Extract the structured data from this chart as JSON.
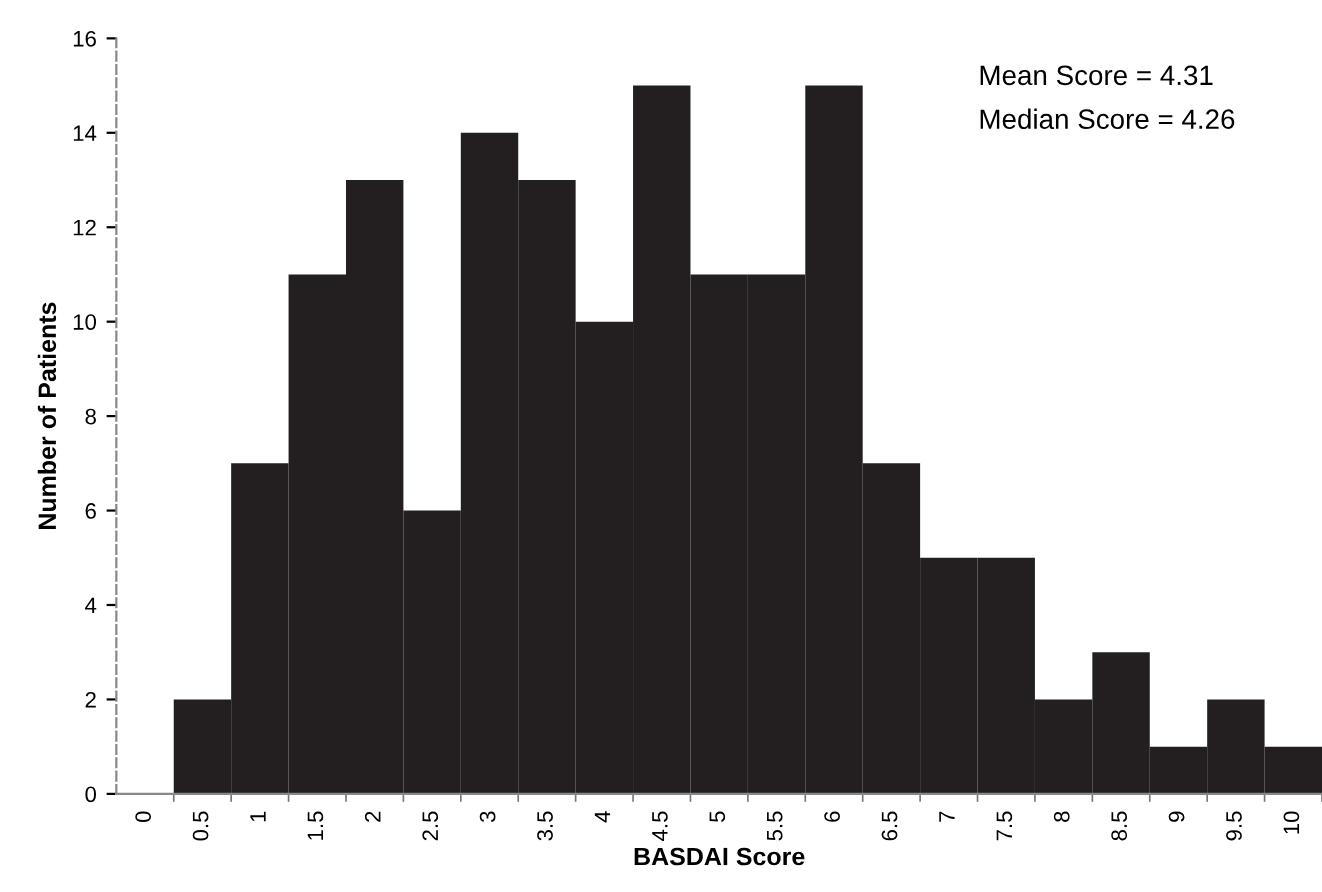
{
  "chart_data": {
    "type": "bar",
    "xlabel": "BASDAI Score",
    "ylabel": "Number of Patients",
    "categories": [
      "0",
      "0.5",
      "1",
      "1.5",
      "2",
      "2.5",
      "3",
      "3.5",
      "4",
      "4.5",
      "5",
      "5.5",
      "6",
      "6.5",
      "7",
      "7.5",
      "8",
      "8.5",
      "9",
      "9.5",
      "10"
    ],
    "values": [
      0,
      2,
      7,
      11,
      13,
      6,
      14,
      13,
      10,
      15,
      11,
      11,
      15,
      7,
      5,
      5,
      2,
      3,
      1,
      2,
      1
    ],
    "color": "#231f20",
    "ylim": [
      0,
      16
    ],
    "yticks": [
      0,
      2,
      4,
      6,
      8,
      10,
      12,
      14,
      16
    ],
    "grid": false,
    "legend": false,
    "annotations": [
      "Mean Score = 4.31",
      "Median Score = 4.26"
    ]
  }
}
